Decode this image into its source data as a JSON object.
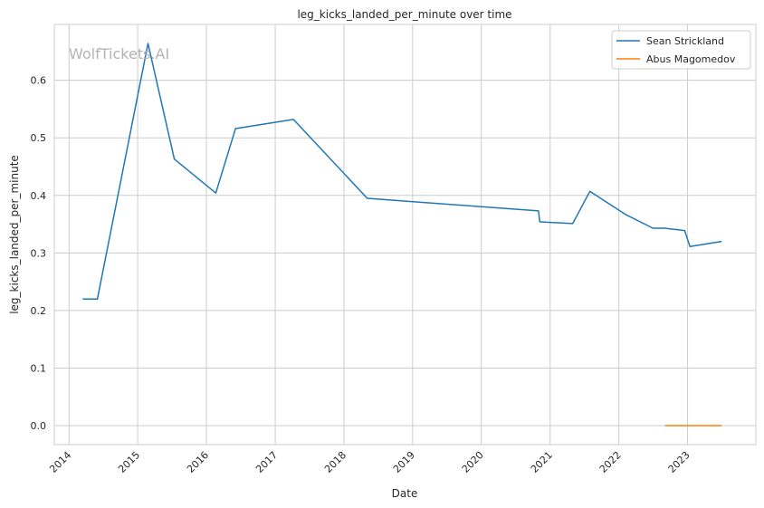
{
  "chart_data": {
    "type": "line",
    "title": "leg_kicks_landed_per_minute over time",
    "xlabel": "Date",
    "ylabel": "leg_kicks_landed_per_minute",
    "watermark": "WolfTickets.AI",
    "x_ticks": [
      "2014",
      "2015",
      "2016",
      "2017",
      "2018",
      "2019",
      "2020",
      "2021",
      "2022",
      "2023"
    ],
    "y_ticks": [
      "0.0",
      "0.1",
      "0.2",
      "0.3",
      "0.4",
      "0.5",
      "0.6"
    ],
    "xlim": [
      "2013-10-15",
      "2023-12-30"
    ],
    "ylim": [
      -0.033,
      0.697
    ],
    "grid": true,
    "legend_position": "top-right",
    "series": [
      {
        "name": "Sean Strickland",
        "color": "#1f77b4",
        "points": [
          [
            "2014-03-15",
            0.22
          ],
          [
            "2014-06-01",
            0.22
          ],
          [
            "2015-02-25",
            0.664
          ],
          [
            "2015-07-15",
            0.463
          ],
          [
            "2016-02-20",
            0.404
          ],
          [
            "2016-06-04",
            0.516
          ],
          [
            "2017-04-08",
            0.532
          ],
          [
            "2018-05-05",
            0.395
          ],
          [
            "2020-10-31",
            0.373
          ],
          [
            "2020-11-07",
            0.354
          ],
          [
            "2021-05-01",
            0.351
          ],
          [
            "2021-07-31",
            0.407
          ],
          [
            "2022-02-05",
            0.367
          ],
          [
            "2022-07-01",
            0.343
          ],
          [
            "2022-08-31",
            0.343
          ],
          [
            "2022-12-17",
            0.339
          ],
          [
            "2023-01-14",
            0.311
          ],
          [
            "2023-07-01",
            0.32
          ]
        ]
      },
      {
        "name": "Abus Magomedov",
        "color": "#ff7f0e",
        "points": [
          [
            "2022-09-03",
            0.0
          ],
          [
            "2023-07-01",
            0.0
          ]
        ]
      }
    ]
  }
}
